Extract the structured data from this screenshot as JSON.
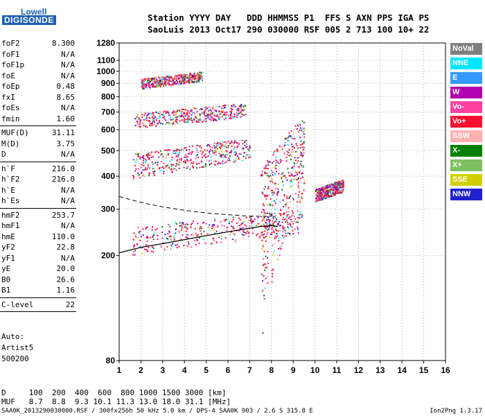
{
  "logo": {
    "top": "Lowell",
    "bottom": "DIGISONDE"
  },
  "header": {
    "line1": "Station YYYY DAY   DDD HHMMSS P1  FFS S AXN PPS IGA PS",
    "line2": "SaoLuis 2013 Oct17 290 030000 RSF 005 2 713 100 10+ 22"
  },
  "side_groups": [
    [
      {
        "k": "foF2",
        "v": "8.300"
      },
      {
        "k": "foF1",
        "v": "N/A"
      },
      {
        "k": "foF1p",
        "v": "N/A"
      },
      {
        "k": "foE",
        "v": "N/A"
      },
      {
        "k": "foEp",
        "v": "0.48"
      },
      {
        "k": "fxI",
        "v": "8.65"
      },
      {
        "k": "foEs",
        "v": "N/A"
      },
      {
        "k": "fmin",
        "v": "1.60"
      }
    ],
    [
      {
        "k": "MUF(D)",
        "v": "31.11"
      },
      {
        "k": "M(D)",
        "v": "3.75"
      },
      {
        "k": "D",
        "v": "N/A"
      }
    ],
    [
      {
        "k": "h`F",
        "v": "216.0"
      },
      {
        "k": "h`F2",
        "v": "216.0"
      },
      {
        "k": "h`E",
        "v": "N/A"
      },
      {
        "k": "h`Es",
        "v": "N/A"
      }
    ],
    [
      {
        "k": "hmF2",
        "v": "253.7"
      },
      {
        "k": "hmF1",
        "v": "N/A"
      },
      {
        "k": "hmE",
        "v": "110.0"
      },
      {
        "k": "yF2",
        "v": "22.8"
      },
      {
        "k": "yF1",
        "v": "N/A"
      },
      {
        "k": "yE",
        "v": "20.0"
      },
      {
        "k": "B0",
        "v": "26.6"
      },
      {
        "k": "B1",
        "v": "1.16"
      }
    ],
    [
      {
        "k": "C-level",
        "v": "22"
      }
    ]
  ],
  "auto": {
    "line1": "Auto:",
    "line2": "Artist5",
    "line3": "500200"
  },
  "footer": {
    "d_row": "D     100  200  400  600  800 1000 1500 3000 [km]",
    "muf_row": "MUF   8.7  8.8  9.3 10.1 11.3 13.0 18.0 31.1 [MHz]",
    "file_line": "SAA0K_2013290030000.RSF / 300fx256h 50 kHz 5.0 km / DPS-4 SAA0K 903 / 2.6 S 315.8 E",
    "version": "Ion2Png 1.3.17"
  },
  "legend": [
    {
      "label": "NoVal",
      "color": "#808080"
    },
    {
      "label": "NNE",
      "color": "#00e5ff"
    },
    {
      "label": "E",
      "color": "#3399ff"
    },
    {
      "label": "W",
      "color": "#b000b0"
    },
    {
      "label": "Vo-",
      "color": "#ff40a0"
    },
    {
      "label": "Vo+",
      "color": "#ff1030"
    },
    {
      "label": "SSW",
      "color": "#ffb0b0"
    },
    {
      "label": "X-",
      "color": "#008000"
    },
    {
      "label": "X+",
      "color": "#80c060"
    },
    {
      "label": "SSE",
      "color": "#d0d000"
    },
    {
      "label": "NNW",
      "color": "#2020d0"
    }
  ],
  "chart_data": {
    "type": "scatter",
    "title": "",
    "xlabel": "",
    "ylabel": "",
    "x_unit": "MHz",
    "y_unit": "km",
    "xlim": [
      1,
      16
    ],
    "ylim": [
      80,
      1280
    ],
    "y_scale": "log",
    "x_ticks": [
      1,
      2,
      3,
      4,
      5,
      6,
      7,
      8,
      9,
      10,
      11,
      12,
      13,
      14,
      15,
      16
    ],
    "y_ticks": [
      80,
      200,
      300,
      400,
      500,
      600,
      700,
      800,
      900,
      1000,
      1100,
      1280
    ],
    "grid": true,
    "trace_clusters": [
      {
        "name": "F2 O-trace echoes",
        "f_range": [
          1.6,
          9.4
        ],
        "h_range": [
          230,
          300
        ]
      },
      {
        "name": "F 2nd-hop echoes",
        "f_range": [
          1.6,
          7.0
        ],
        "h_range": [
          440,
          560
        ]
      },
      {
        "name": "F 3rd-hop echoes",
        "f_range": [
          1.7,
          6.8
        ],
        "h_range": [
          650,
          760
        ]
      },
      {
        "name": "F 4th-hop echoes",
        "f_range": [
          2.0,
          4.8
        ],
        "h_range": [
          900,
          1000
        ]
      },
      {
        "name": "Spread F echoes",
        "f_range": [
          7.5,
          9.5
        ],
        "h_range": [
          260,
          680
        ]
      },
      {
        "name": "Oblique echoes",
        "f_range": [
          10.0,
          11.3
        ],
        "h_range": [
          340,
          390
        ]
      }
    ],
    "profile_curve": {
      "f": [
        1.0,
        2.0,
        3.0,
        4.0,
        5.0,
        6.0,
        7.0,
        7.5,
        8.0,
        8.3
      ],
      "h": [
        205,
        215,
        222,
        230,
        238,
        246,
        254,
        258,
        260,
        258
      ]
    },
    "dashed_curve": {
      "f": [
        1.0,
        2.0,
        3.0,
        4.0,
        5.0,
        6.0,
        7.0,
        8.0
      ],
      "h": [
        335,
        318,
        306,
        297,
        290,
        286,
        282,
        282
      ]
    }
  }
}
